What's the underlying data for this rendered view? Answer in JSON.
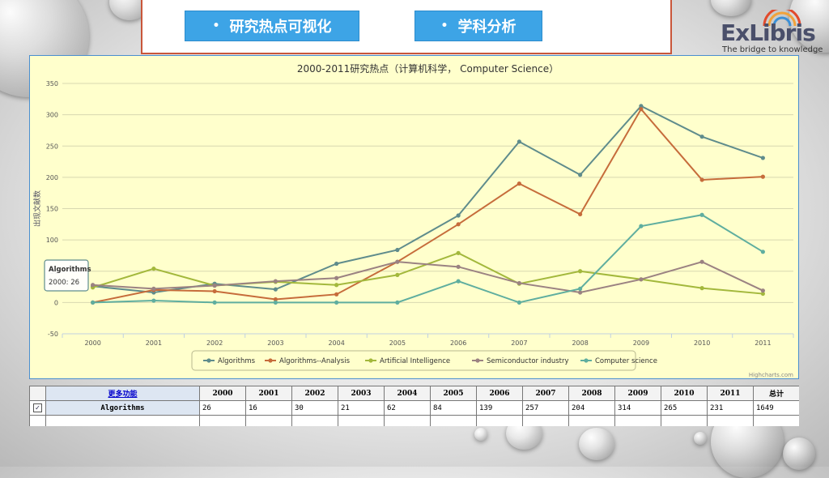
{
  "tabs": [
    {
      "label": "研究热点可视化"
    },
    {
      "label": "学科分析"
    }
  ],
  "logo": {
    "brand": "ExLibris",
    "tagline": "The bridge to knowledge"
  },
  "chart_data": {
    "type": "line",
    "title": "2000-2011研究热点（计算机科学， Computer Science）",
    "ylabel": "出现文献数",
    "xlabel": "",
    "ylim": [
      -50,
      350
    ],
    "yticks": [
      -50,
      0,
      50,
      100,
      150,
      200,
      250,
      300,
      350
    ],
    "x": [
      "2000",
      "2001",
      "2002",
      "2003",
      "2004",
      "2005",
      "2006",
      "2007",
      "2008",
      "2009",
      "2010",
      "2011"
    ],
    "grid": true,
    "legend": "bottom",
    "credit": "Highcharts.com",
    "series": [
      {
        "name": "Algorithms",
        "color": "#5f8c8c",
        "values": [
          26,
          16,
          30,
          21,
          62,
          84,
          139,
          257,
          204,
          314,
          265,
          231
        ]
      },
      {
        "name": "Algorithms--Analysis",
        "color": "#c66c3b",
        "values": [
          0,
          20,
          18,
          5,
          13,
          65,
          125,
          190,
          141,
          309,
          196,
          201
        ]
      },
      {
        "name": "Artificial Intelligence",
        "color": "#a3b83c",
        "values": [
          24,
          54,
          27,
          33,
          28,
          44,
          79,
          30,
          50,
          37,
          23,
          14
        ]
      },
      {
        "name": "Semiconductor industry",
        "color": "#9b8282",
        "values": [
          28,
          22,
          27,
          34,
          39,
          65,
          57,
          31,
          16,
          37,
          65,
          19
        ]
      },
      {
        "name": "Computer science",
        "color": "#5fae9f",
        "values": [
          0,
          3,
          0,
          0,
          0,
          0,
          34,
          0,
          22,
          122,
          140,
          81
        ]
      }
    ],
    "tooltip": {
      "series": "Algorithms",
      "text": "2000: 26"
    }
  },
  "table": {
    "more_label": "更多功能",
    "headers": [
      "2000",
      "2001",
      "2002",
      "2003",
      "2004",
      "2005",
      "2006",
      "2007",
      "2008",
      "2009",
      "2010",
      "2011"
    ],
    "total_label": "总计",
    "rows": [
      {
        "name": "Algorithms",
        "checked": "✓",
        "values": [
          "26",
          "16",
          "30",
          "21",
          "62",
          "84",
          "139",
          "257",
          "204",
          "314",
          "265",
          "231"
        ],
        "total": "1649"
      }
    ]
  }
}
